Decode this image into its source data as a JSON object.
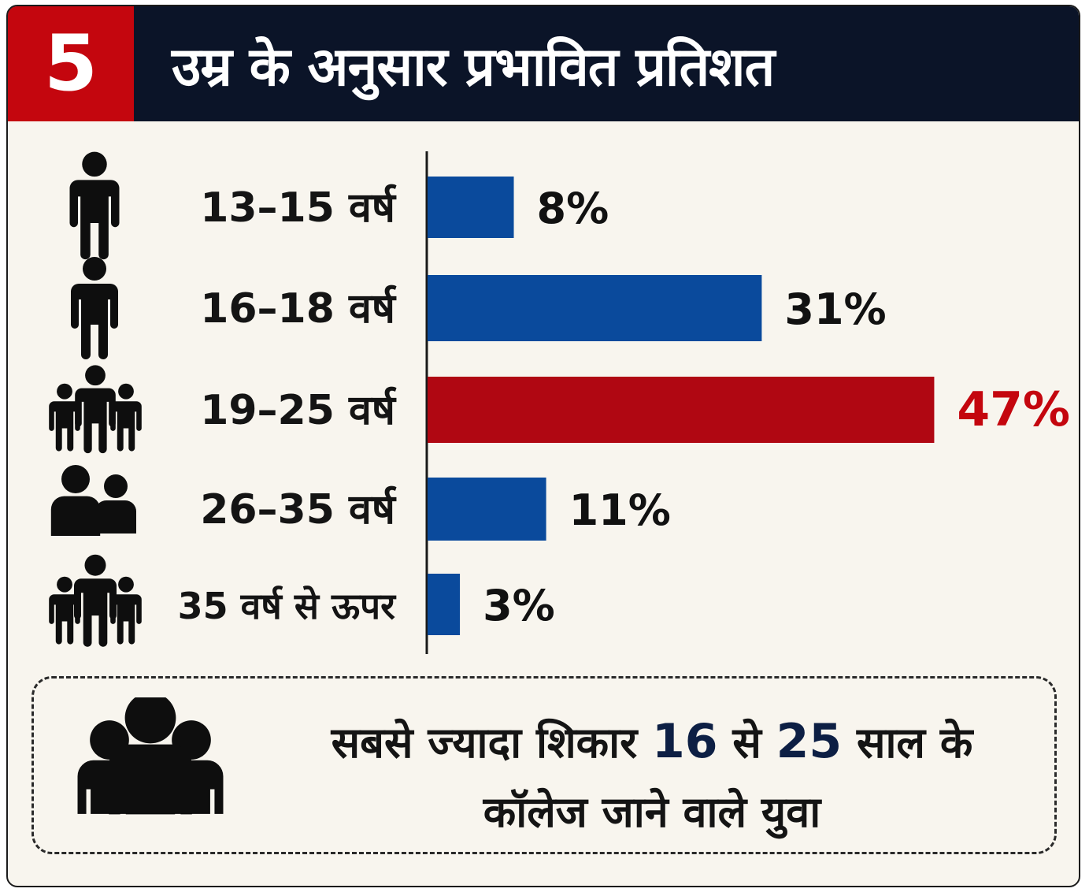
{
  "header": {
    "number": "5",
    "title": "उम्र के अनुसार प्रभावित प्रतिशत"
  },
  "colors": {
    "header_bg": "#0b1428",
    "number_bg": "#c4060e",
    "bar_blue": "#0a4a9c",
    "bar_red": "#b00712",
    "highlight_text": "#c4060e"
  },
  "chart_data": {
    "type": "bar",
    "orientation": "horizontal",
    "categories": [
      "13–15 वर्ष",
      "16–18 वर्ष",
      "19–25 वर्ष",
      "26–35 वर्ष",
      "35 वर्ष से ऊपर"
    ],
    "values": [
      8,
      31,
      47,
      11,
      3
    ],
    "value_labels": [
      "8%",
      "31%",
      "47%",
      "11%",
      "3%"
    ],
    "highlight_index": 2,
    "unit": "%",
    "icons": [
      "single-person-icon",
      "single-person-icon",
      "family-group-icon",
      "two-people-icon",
      "family-group-icon"
    ],
    "title": "उम्र के अनुसार प्रभावित प्रतिशत",
    "grid": false
  },
  "summary": {
    "icon": "group-people-icon",
    "text_before": "सबसे ज्यादा शिकार ",
    "age_from": "16",
    "text_mid": " से ",
    "age_to": "25",
    "text_after": " साल के",
    "line2": "कॉलेज जाने वाले युवा"
  }
}
